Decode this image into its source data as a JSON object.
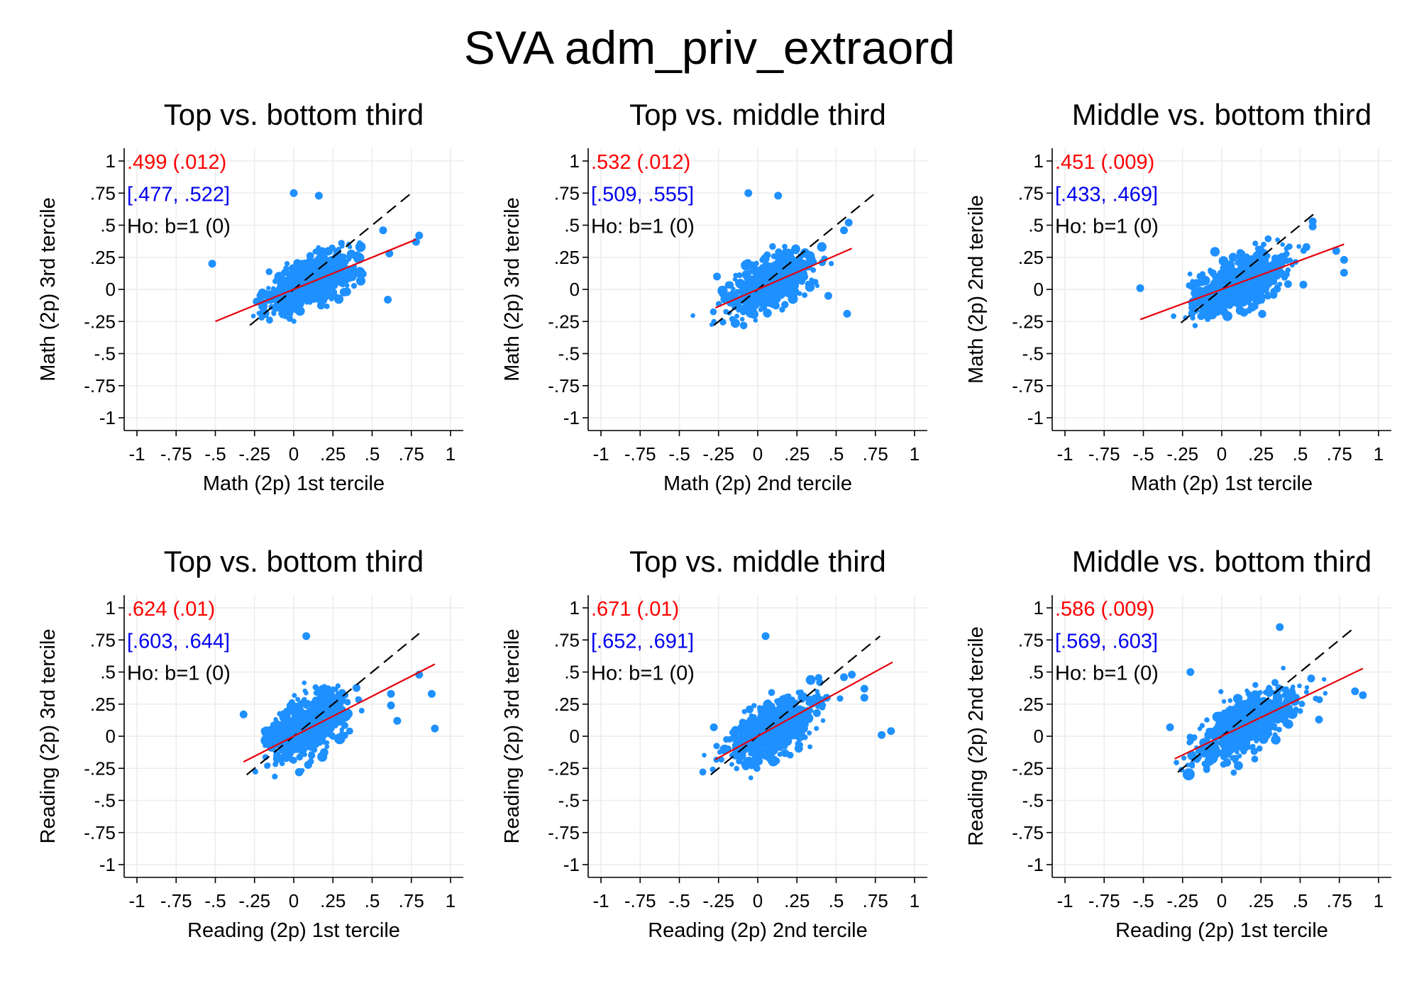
{
  "figure_title": "SVA adm_priv_extraord",
  "colors": {
    "points": "#1E90FF",
    "fit_line": "#E8000B",
    "reference_line": "#000000",
    "estimate_text": "#FF0000",
    "ci_text": "#0000EE",
    "test_text": "#000000",
    "grid": "#ececec"
  },
  "chart_data": [
    {
      "type": "scatter",
      "title": "Top vs. bottom third",
      "xlabel": "Math (2p) 1st tercile",
      "ylabel": "Math (2p) 3rd tercile",
      "xlim": [
        -1,
        1
      ],
      "ylim": [
        -1,
        1
      ],
      "x_ticks": [
        -1,
        -0.75,
        -0.5,
        -0.25,
        0,
        0.25,
        0.5,
        0.75,
        1
      ],
      "x_tick_labels": [
        "-1",
        "-.75",
        "-.5",
        "-.25",
        "0",
        ".25",
        ".5",
        ".75",
        "1"
      ],
      "y_ticks": [
        1,
        0.75,
        0.5,
        0.25,
        0,
        -0.25,
        -0.5,
        -0.75,
        -1
      ],
      "y_tick_labels": [
        "1",
        ".75",
        ".5",
        ".25",
        "0",
        "-.25",
        "-.5",
        "-.75",
        "-1"
      ],
      "grid": true,
      "annotations": [
        ".499 (.012)",
        "[.477, .522]",
        "Ho: b=1 (0)"
      ],
      "fit_line": {
        "slope": 0.499,
        "x_range": [
          -0.5,
          0.78
        ]
      },
      "reference_line": {
        "slope": 1,
        "x_range": [
          -0.28,
          0.75
        ]
      },
      "cloud": {
        "x_center": 0.1,
        "y_center": 0.05,
        "x_sd": 0.13,
        "y_sd": 0.09,
        "slope": 0.5,
        "n": 700
      },
      "outliers": [
        [
          -0.52,
          0.2
        ],
        [
          0.8,
          0.42
        ],
        [
          0.78,
          0.37
        ],
        [
          0.0,
          0.75
        ],
        [
          0.16,
          0.73
        ],
        [
          0.57,
          0.46
        ],
        [
          0.6,
          -0.08
        ],
        [
          0.44,
          0.12
        ],
        [
          0.61,
          0.28
        ]
      ]
    },
    {
      "type": "scatter",
      "title": "Top vs. middle third",
      "xlabel": "Math (2p) 2nd tercile",
      "ylabel": "Math (2p) 3rd tercile",
      "xlim": [
        -1,
        1
      ],
      "ylim": [
        -1,
        1
      ],
      "x_ticks": [
        -1,
        -0.75,
        -0.5,
        -0.25,
        0,
        0.25,
        0.5,
        0.75,
        1
      ],
      "x_tick_labels": [
        "-1",
        "-.75",
        "-.5",
        "-.25",
        "0",
        ".25",
        ".5",
        ".75",
        "1"
      ],
      "y_ticks": [
        1,
        0.75,
        0.5,
        0.25,
        0,
        -0.25,
        -0.5,
        -0.75,
        -1
      ],
      "y_tick_labels": [
        "1",
        ".75",
        ".5",
        ".25",
        "0",
        "-.25",
        "-.5",
        "-.75",
        "-1"
      ],
      "grid": true,
      "annotations": [
        ".532 (.012)",
        "[.509, .555]",
        "Ho: b=1 (0)"
      ],
      "fit_line": {
        "slope": 0.532,
        "x_range": [
          -0.27,
          0.6
        ]
      },
      "reference_line": {
        "slope": 1,
        "x_range": [
          -0.28,
          0.75
        ]
      },
      "cloud": {
        "x_center": 0.08,
        "y_center": 0.04,
        "x_sd": 0.12,
        "y_sd": 0.09,
        "slope": 0.5,
        "n": 700
      },
      "outliers": [
        [
          -0.26,
          0.1
        ],
        [
          0.58,
          0.52
        ],
        [
          0.55,
          0.46
        ],
        [
          0.57,
          -0.19
        ],
        [
          -0.06,
          0.75
        ],
        [
          0.13,
          0.73
        ],
        [
          0.45,
          -0.05
        ]
      ]
    },
    {
      "type": "scatter",
      "title": "Middle vs. bottom third",
      "xlabel": "Math (2p) 1st tercile",
      "ylabel": "Math (2p) 2nd tercile",
      "xlim": [
        -1,
        1
      ],
      "ylim": [
        -1,
        1
      ],
      "x_ticks": [
        -1,
        -0.75,
        -0.5,
        -0.25,
        0,
        0.25,
        0.5,
        0.75,
        1
      ],
      "x_tick_labels": [
        "-1",
        "-.75",
        "-.5",
        "-.25",
        "0",
        ".25",
        ".5",
        ".75",
        "1"
      ],
      "y_ticks": [
        1,
        0.75,
        0.5,
        0.25,
        0,
        -0.25,
        -0.5,
        -0.75,
        -1
      ],
      "y_tick_labels": [
        "1",
        ".75",
        ".5",
        ".25",
        "0",
        "-.25",
        "-.5",
        "-.75",
        "-1"
      ],
      "grid": true,
      "annotations": [
        ".451 (.009)",
        "[.433, .469]",
        "Ho: b=1 (0)"
      ],
      "fit_line": {
        "slope": 0.451,
        "x_range": [
          -0.52,
          0.78
        ]
      },
      "reference_line": {
        "slope": 1,
        "x_range": [
          -0.26,
          0.6
        ]
      },
      "cloud": {
        "x_center": 0.12,
        "y_center": 0.05,
        "x_sd": 0.15,
        "y_sd": 0.09,
        "slope": 0.45,
        "n": 700
      },
      "outliers": [
        [
          -0.52,
          0.01
        ],
        [
          0.78,
          0.23
        ],
        [
          0.78,
          0.13
        ],
        [
          0.58,
          0.53
        ],
        [
          0.58,
          0.49
        ],
        [
          0.73,
          0.3
        ],
        [
          0.54,
          0.33
        ]
      ]
    },
    {
      "type": "scatter",
      "title": "Top vs. bottom third",
      "xlabel": "Reading (2p) 1st tercile",
      "ylabel": "Reading (2p) 3rd tercile",
      "xlim": [
        -1,
        1
      ],
      "ylim": [
        -1,
        1
      ],
      "x_ticks": [
        -1,
        -0.75,
        -0.5,
        -0.25,
        0,
        0.25,
        0.5,
        0.75,
        1
      ],
      "x_tick_labels": [
        "-1",
        "-.75",
        "-.5",
        "-.25",
        "0",
        ".25",
        ".5",
        ".75",
        "1"
      ],
      "y_ticks": [
        1,
        0.75,
        0.5,
        0.25,
        0,
        -0.25,
        -0.5,
        -0.75,
        -1
      ],
      "y_tick_labels": [
        "1",
        ".75",
        ".5",
        ".25",
        "0",
        "-.25",
        "-.5",
        "-.75",
        "-1"
      ],
      "grid": true,
      "annotations": [
        ".624 (.01)",
        "[.603, .644]",
        "Ho: b=1 (0)"
      ],
      "fit_line": {
        "slope": 0.624,
        "x_range": [
          -0.32,
          0.9
        ]
      },
      "reference_line": {
        "slope": 1,
        "x_range": [
          -0.3,
          0.8
        ]
      },
      "cloud": {
        "x_center": 0.1,
        "y_center": 0.08,
        "x_sd": 0.12,
        "y_sd": 0.11,
        "slope": 0.55,
        "n": 700
      },
      "outliers": [
        [
          -0.32,
          0.17
        ],
        [
          0.8,
          0.48
        ],
        [
          0.88,
          0.33
        ],
        [
          0.9,
          0.06
        ],
        [
          0.08,
          0.78
        ],
        [
          0.62,
          0.24
        ],
        [
          0.62,
          0.33
        ],
        [
          0.66,
          0.12
        ]
      ]
    },
    {
      "type": "scatter",
      "title": "Top vs. middle third",
      "xlabel": "Reading (2p) 2nd tercile",
      "ylabel": "Reading (2p) 3rd tercile",
      "xlim": [
        -1,
        1
      ],
      "ylim": [
        -1,
        1
      ],
      "x_ticks": [
        -1,
        -0.75,
        -0.5,
        -0.25,
        0,
        0.25,
        0.5,
        0.75,
        1
      ],
      "x_tick_labels": [
        "-1",
        "-.75",
        "-.5",
        "-.25",
        "0",
        ".25",
        ".5",
        ".75",
        "1"
      ],
      "y_ticks": [
        1,
        0.75,
        0.5,
        0.25,
        0,
        -0.25,
        -0.5,
        -0.75,
        -1
      ],
      "y_tick_labels": [
        "1",
        ".75",
        ".5",
        ".25",
        "0",
        "-.25",
        "-.5",
        "-.75",
        "-1"
      ],
      "grid": true,
      "annotations": [
        ".671 (.01)",
        "[.652, .691]",
        "Ho: b=1 (0)"
      ],
      "fit_line": {
        "slope": 0.671,
        "x_range": [
          -0.27,
          0.86
        ]
      },
      "reference_line": {
        "slope": 1,
        "x_range": [
          -0.3,
          0.78
        ]
      },
      "cloud": {
        "x_center": 0.1,
        "y_center": 0.06,
        "x_sd": 0.13,
        "y_sd": 0.1,
        "slope": 0.6,
        "n": 700
      },
      "outliers": [
        [
          -0.28,
          0.07
        ],
        [
          0.79,
          0.01
        ],
        [
          0.85,
          0.04
        ],
        [
          0.55,
          0.46
        ],
        [
          0.68,
          0.3
        ],
        [
          0.68,
          0.37
        ],
        [
          0.05,
          0.78
        ],
        [
          0.6,
          0.48
        ]
      ]
    },
    {
      "type": "scatter",
      "title": "Middle vs. bottom third",
      "xlabel": "Reading (2p) 1st tercile",
      "ylabel": "Reading (2p) 2nd tercile",
      "xlim": [
        -1,
        1
      ],
      "ylim": [
        -1,
        1
      ],
      "x_ticks": [
        -1,
        -0.75,
        -0.5,
        -0.25,
        0,
        0.25,
        0.5,
        0.75,
        1
      ],
      "x_tick_labels": [
        "-1",
        "-.75",
        "-.5",
        "-.25",
        "0",
        ".25",
        ".5",
        ".75",
        "1"
      ],
      "y_ticks": [
        1,
        0.75,
        0.5,
        0.25,
        0,
        -0.25,
        -0.5,
        -0.75,
        -1
      ],
      "y_tick_labels": [
        "1",
        ".75",
        ".5",
        ".25",
        "0",
        "-.25",
        "-.5",
        "-.75",
        "-1"
      ],
      "grid": true,
      "annotations": [
        ".586 (.009)",
        "[.569, .603]",
        "Ho: b=1 (0)"
      ],
      "fit_line": {
        "slope": 0.586,
        "x_range": [
          -0.3,
          0.9
        ]
      },
      "reference_line": {
        "slope": 1,
        "x_range": [
          -0.28,
          0.85
        ]
      },
      "cloud": {
        "x_center": 0.15,
        "y_center": 0.08,
        "x_sd": 0.15,
        "y_sd": 0.1,
        "slope": 0.55,
        "n": 700
      },
      "outliers": [
        [
          -0.33,
          0.07
        ],
        [
          -0.2,
          0.5
        ],
        [
          0.85,
          0.35
        ],
        [
          0.9,
          0.32
        ],
        [
          0.37,
          0.85
        ],
        [
          0.62,
          0.13
        ],
        [
          0.57,
          0.45
        ]
      ]
    }
  ]
}
